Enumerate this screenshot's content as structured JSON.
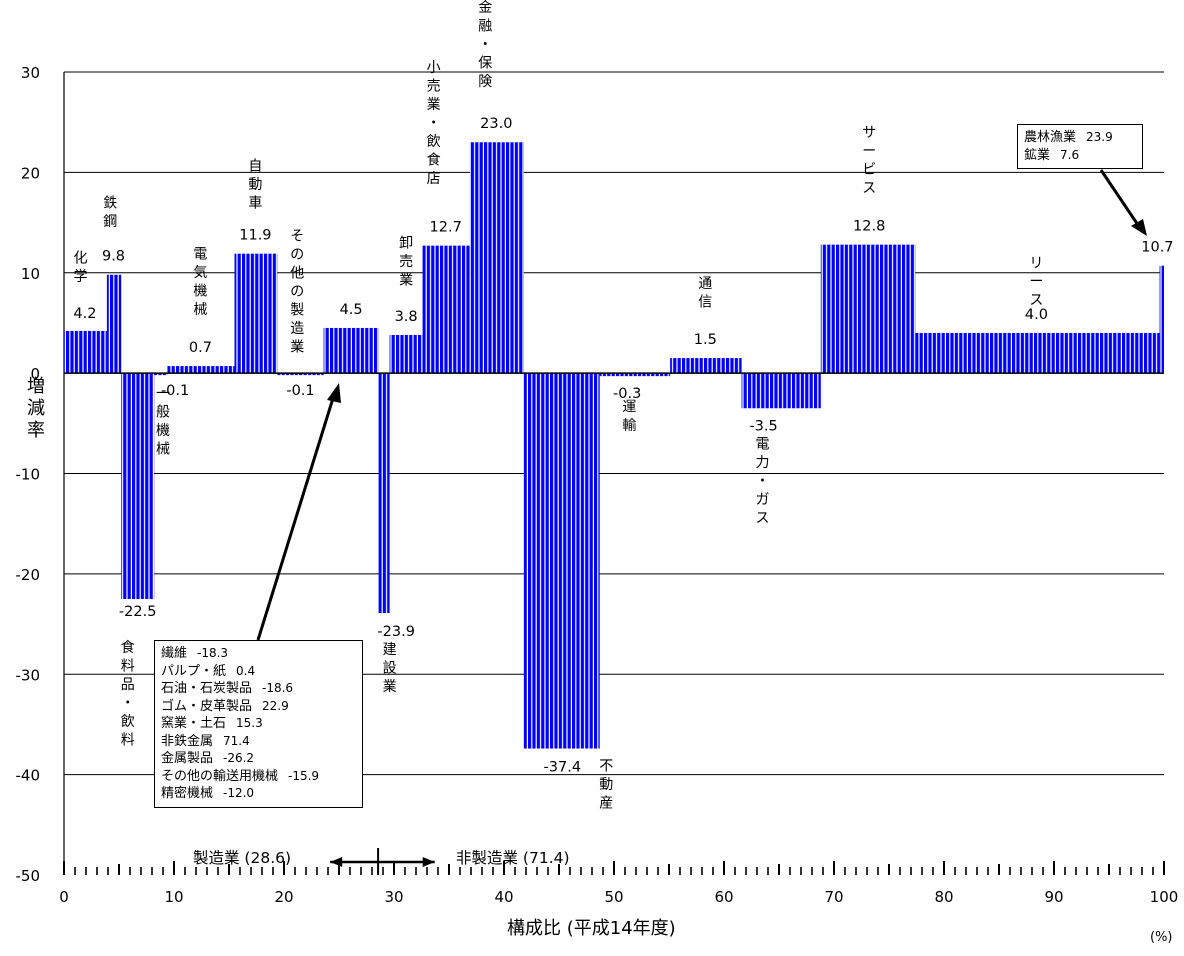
{
  "chart_data": {
    "type": "bar",
    "subtype": "variable-width",
    "xlabel": "構成比 (平成14年度)",
    "ylabel": "増減率",
    "x_unit": "(%)",
    "xlim": [
      0,
      100
    ],
    "ylim": [
      -50,
      30
    ],
    "x_ticks": [
      0,
      10,
      20,
      30,
      40,
      50,
      60,
      70,
      80,
      90,
      100
    ],
    "y_ticks": [
      30,
      20,
      10,
      0,
      -10,
      -20,
      -30,
      -40,
      -50
    ],
    "grid": true,
    "bars": [
      {
        "label": "化学",
        "value": 4.2,
        "x_start": 0.0,
        "x_end": 3.9
      },
      {
        "label": "鉄鋼",
        "value": 9.8,
        "x_start": 3.9,
        "x_end": 5.2
      },
      {
        "label": "食料品・飲料",
        "value": -22.5,
        "x_start": 5.2,
        "x_end": 8.2
      },
      {
        "label": "一般機械",
        "value": -0.1,
        "x_start": 8.2,
        "x_end": 9.4
      },
      {
        "label": "電気機械",
        "value": 0.7,
        "x_start": 9.4,
        "x_end": 15.5
      },
      {
        "label": "自動車",
        "value": 11.9,
        "x_start": 15.5,
        "x_end": 19.4
      },
      {
        "label": "その他の製造業",
        "value": -0.1,
        "x_start": 19.4,
        "x_end": 23.6
      },
      {
        "label": "",
        "value": 4.5,
        "x_start": 23.6,
        "x_end": 28.6
      },
      {
        "label": "建設業",
        "value": -23.9,
        "x_start": 28.6,
        "x_end": 29.6
      },
      {
        "label": "卸売業",
        "value": 3.8,
        "x_start": 29.6,
        "x_end": 32.6
      },
      {
        "label": "小売業・飲食店",
        "value": 12.7,
        "x_start": 32.6,
        "x_end": 36.9
      },
      {
        "label": "金融・保険",
        "value": 23.0,
        "x_start": 36.9,
        "x_end": 41.8
      },
      {
        "label": "不動産",
        "value": -37.4,
        "x_start": 41.8,
        "x_end": 48.7
      },
      {
        "label": "運輸",
        "value": -0.3,
        "x_start": 48.7,
        "x_end": 55.1
      },
      {
        "label": "通信",
        "value": 1.5,
        "x_start": 55.1,
        "x_end": 61.6
      },
      {
        "label": "電力・ガス",
        "value": -3.5,
        "x_start": 61.6,
        "x_end": 68.8
      },
      {
        "label": "サービス",
        "value": 12.8,
        "x_start": 68.8,
        "x_end": 77.4
      },
      {
        "label": "リース",
        "value": 4.0,
        "x_start": 77.4,
        "x_end": 99.6
      },
      {
        "label": "",
        "value": 10.7,
        "x_start": 99.6,
        "x_end": 100.0
      }
    ],
    "value_labels": [
      "4.2",
      "9.8",
      "-22.5",
      "-0.1",
      "0.7",
      "11.9",
      "-0.1",
      "4.5",
      "-23.9",
      "3.8",
      "12.7",
      "23.0",
      "-37.4",
      "-0.3",
      "1.5",
      "-3.5",
      "12.8",
      "4.0",
      "10.7"
    ],
    "sectors": {
      "manufacturing": {
        "label": "製造業 (28.6)",
        "share": 28.6
      },
      "non_manufacturing": {
        "label": "非製造業 (71.4)",
        "share": 71.4
      }
    },
    "annotations": {
      "other_manufacturing": [
        {
          "name": "繊維",
          "value": "-18.3"
        },
        {
          "name": "パルプ・紙",
          "value": "0.4"
        },
        {
          "name": "石油・石炭製品",
          "value": "-18.6"
        },
        {
          "name": "ゴム・皮革製品",
          "value": "22.9"
        },
        {
          "name": "窯業・土石",
          "value": "15.3"
        },
        {
          "name": "非鉄金属",
          "value": "71.4"
        },
        {
          "name": "金属製品",
          "value": "-26.2"
        },
        {
          "name": "その他の輸送用機械",
          "value": "-15.9"
        },
        {
          "name": "精密機械",
          "value": "-12.0"
        }
      ],
      "last_bar": [
        {
          "name": "農林漁業",
          "value": "23.9"
        },
        {
          "name": "鉱業",
          "value": "7.6"
        }
      ]
    },
    "colors": {
      "bar": "#0000ff",
      "bar_stripe": "#ffffff",
      "grid": "#000000"
    }
  }
}
